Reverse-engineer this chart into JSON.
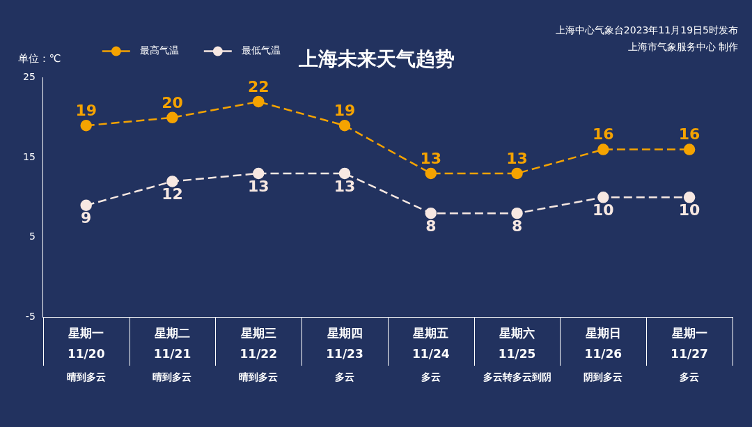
{
  "chart_data": {
    "type": "line",
    "title": "上海未来天气趋势",
    "ylabel": "单位：℃",
    "annotations": [
      "上海中心气象台2023年11月19日5时发布",
      "上海市气象服务中心 制作"
    ],
    "categories": [
      "星期一\n11/20\n晴到多云",
      "星期二\n11/21\n晴到多云",
      "星期三\n11/22\n晴到多云",
      "星期四\n11/23\n多云",
      "星期五\n11/24\n多云",
      "星期六\n11/25\n多云转多云到阴",
      "星期日\n11/26\n阴到多云",
      "星期一\n11/27\n多云"
    ],
    "series": [
      {
        "name": "最高气温",
        "color": "#f5a300",
        "values": [
          19,
          20,
          22,
          19,
          13,
          13,
          16,
          16
        ]
      },
      {
        "name": "最低气温",
        "color": "#f7e8e2",
        "values": [
          9,
          12,
          13,
          13,
          8,
          8,
          10,
          10
        ]
      }
    ],
    "ylim": [
      -5,
      25
    ],
    "yticks": [
      -5,
      5,
      15,
      25
    ],
    "data_labels": true,
    "legend": "top left",
    "marker": "circle",
    "line_style": "dashed"
  }
}
